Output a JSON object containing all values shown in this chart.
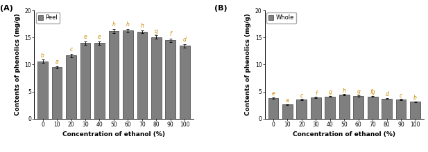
{
  "categories": [
    0,
    10,
    20,
    30,
    40,
    50,
    60,
    70,
    80,
    90,
    100
  ],
  "peel_values": [
    10.6,
    9.5,
    11.7,
    14.0,
    14.0,
    16.2,
    16.3,
    16.1,
    15.1,
    14.5,
    13.5
  ],
  "peel_errors": [
    0.3,
    0.2,
    0.3,
    0.3,
    0.3,
    0.4,
    0.3,
    0.3,
    0.3,
    0.3,
    0.3
  ],
  "peel_letters": [
    "b",
    "a",
    "c",
    "e",
    "e",
    "h",
    "h",
    "h",
    "g",
    "f",
    "d"
  ],
  "whole_values": [
    3.8,
    2.6,
    3.5,
    3.9,
    4.1,
    4.4,
    4.2,
    4.1,
    3.7,
    3.5,
    3.1
  ],
  "whole_errors": [
    0.12,
    0.08,
    0.1,
    0.1,
    0.1,
    0.12,
    0.1,
    0.1,
    0.1,
    0.1,
    0.08
  ],
  "whole_letters": [
    "e",
    "a",
    "c",
    "f",
    "g",
    "h",
    "g",
    "fg",
    "d",
    "c",
    "b"
  ],
  "bar_color": "#7f7f7f",
  "bar_edge_color": "#3c3c3c",
  "ylim_peel": [
    0,
    20
  ],
  "ylim_whole": [
    0,
    20
  ],
  "yticks_peel": [
    0,
    5,
    10,
    15,
    20
  ],
  "yticks_whole": [
    0,
    5,
    10,
    15,
    20
  ],
  "xlabel": "Concentration of ethanol (%)",
  "ylabel": "Contents of phenolics (mg/g)",
  "legend_peel": "Peel",
  "legend_whole": "Whole",
  "label_A": "(A)",
  "label_B": "(B)",
  "letter_color": "#cc8800",
  "letter_fontsize": 5.5,
  "axis_label_fontsize": 6.5,
  "tick_fontsize": 5.5,
  "legend_fontsize": 6.0,
  "bar_width": 0.72
}
